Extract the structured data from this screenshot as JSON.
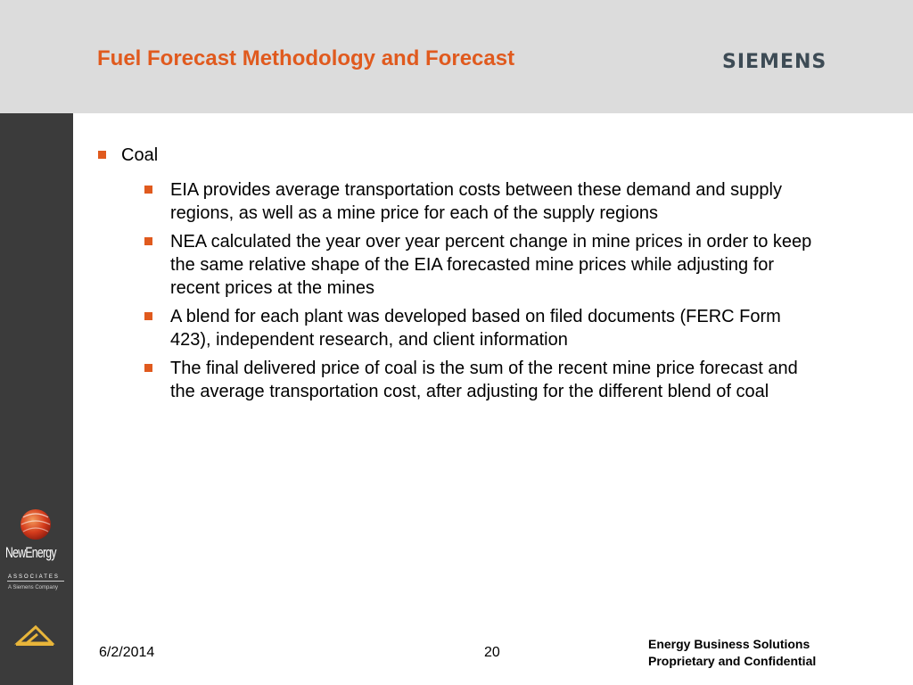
{
  "header": {
    "title": "Fuel Forecast Methodology and Forecast",
    "brand": "SIEMENS"
  },
  "sidebar": {
    "logo_name": "NewEnergy",
    "logo_tagline": "ASSOCIATES",
    "logo_subtagline": "A Siemens Company"
  },
  "content": {
    "topic": "Coal",
    "points": [
      "EIA provides average transportation costs between these demand and supply regions, as well as a mine price for each of the supply regions",
      "NEA calculated the year over year percent change in mine prices in order to keep the same relative shape of the EIA forecasted mine prices while adjusting for recent prices at the mines",
      "A blend for each plant was developed based on filed documents (FERC Form 423), independent research, and client information",
      "The final delivered price of coal is the sum of the recent mine price forecast and the average transportation cost, after adjusting for the different blend of coal"
    ]
  },
  "footer": {
    "date": "6/2/2014",
    "page": "20",
    "line1": "Energy Business Solutions",
    "line2": "Proprietary and Confidential"
  },
  "colors": {
    "accent": "#e05a1e",
    "header_bg": "#dcdcdc",
    "sidebar_bg": "#3b3b3b"
  },
  "icons": [
    "newenergy-globe-icon",
    "nea-triangle-icon"
  ]
}
